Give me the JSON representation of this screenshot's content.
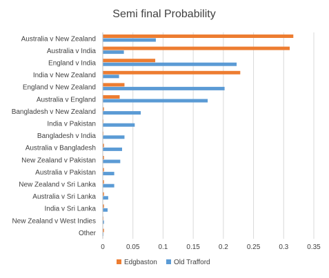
{
  "chart_data": {
    "type": "bar",
    "orientation": "horizontal",
    "title": "Semi final Probability",
    "xlabel": "",
    "ylabel": "",
    "xlim": [
      0,
      0.35
    ],
    "x_ticks": [
      "0",
      "0.05",
      "0.1",
      "0.15",
      "0.2",
      "0.25",
      "0.3",
      "0.35"
    ],
    "grid": "vertical",
    "legend_position": "bottom",
    "categories": [
      "Australia v New Zealand",
      "Australia v India",
      "England v India",
      "India v New Zealand",
      "England v New Zealand",
      "Australia v England",
      "Bangladesh v New Zealand",
      "India v Pakistan",
      "Bangladesh v India",
      "Australia v Bangladesh",
      "New Zealand v Pakistan",
      "Australia v Pakistan",
      "New Zealand v Sri Lanka",
      "Australia v Sri Lanka",
      "India v Sri Lanka",
      "New Zealand v West Indies",
      "Other"
    ],
    "series": [
      {
        "name": "Edgbaston",
        "color": "#ed7d31",
        "values": [
          0.316,
          0.31,
          0.087,
          0.228,
          0.036,
          0.028,
          0.002,
          0.001,
          0.001,
          0.002,
          0.002,
          0.002,
          0.002,
          0.002,
          0.002,
          0.001,
          0.002
        ]
      },
      {
        "name": "Old Trafford",
        "color": "#5b9bd5",
        "values": [
          0.088,
          0.035,
          0.222,
          0.027,
          0.202,
          0.174,
          0.063,
          0.053,
          0.036,
          0.032,
          0.029,
          0.019,
          0.019,
          0.009,
          0.008,
          0.002,
          0.001
        ]
      }
    ]
  }
}
